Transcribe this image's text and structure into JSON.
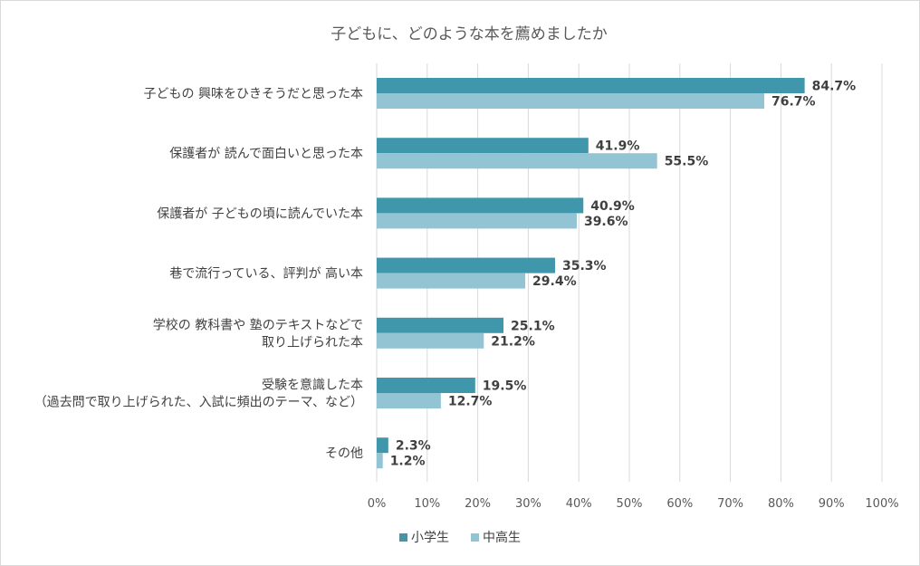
{
  "chart_data": {
    "type": "bar",
    "orientation": "horizontal",
    "title": "子どもに、どのような本を薦めましたか",
    "categories": [
      [
        "子どもの 興味をひきそうだと思った本"
      ],
      [
        "保護者が 読んで面白いと思った本"
      ],
      [
        "保護者が 子どもの頃に読んでいた本"
      ],
      [
        "巷で流行っている、評判が 高い本"
      ],
      [
        "学校の 教科書や 塾のテキストなどで",
        "取り上げられた本"
      ],
      [
        "受験を意識した本",
        "（過去問で取り上げられた、入試に頻出のテーマ、など）"
      ],
      [
        "その他"
      ]
    ],
    "series": [
      {
        "name": "小学生",
        "color": "#4097ab",
        "values": [
          84.7,
          41.9,
          40.9,
          35.3,
          25.1,
          19.5,
          2.3
        ],
        "labels": [
          "84.7%",
          "41.9%",
          "40.9%",
          "35.3%",
          "25.1%",
          "19.5%",
          "2.3%"
        ]
      },
      {
        "name": "中高生",
        "color": "#92c4d4",
        "values": [
          76.7,
          55.5,
          39.6,
          29.4,
          21.2,
          12.7,
          1.2
        ],
        "labels": [
          "76.7%",
          "55.5%",
          "39.6%",
          "29.4%",
          "21.2%",
          "12.7%",
          "1.2%"
        ]
      }
    ],
    "xlim": [
      0,
      100
    ],
    "xticks": [
      "0%",
      "10%",
      "20%",
      "30%",
      "40%",
      "50%",
      "60%",
      "70%",
      "80%",
      "90%",
      "100%"
    ],
    "grid": true,
    "legend_position": "bottom"
  }
}
